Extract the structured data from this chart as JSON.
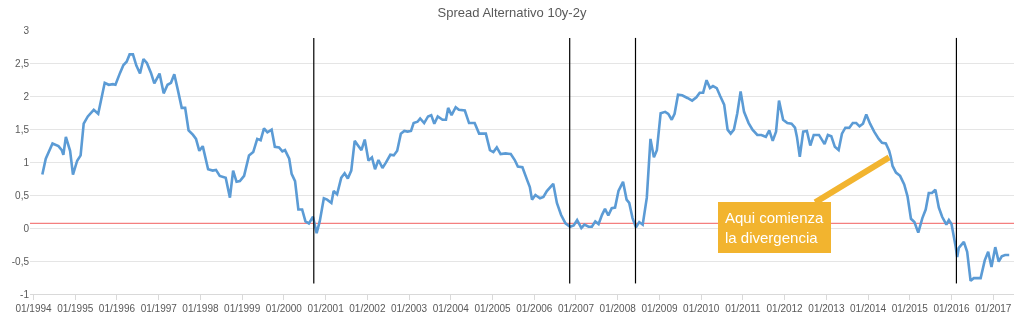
{
  "chart_data": {
    "type": "line",
    "title": "Spread Alternativo 10y-2y",
    "x": [
      "1994-03-19",
      "1994-04-18",
      "1994-06-16",
      "1994-08-07",
      "1994-09-05",
      "1994-09-19",
      "1994-10-11",
      "1994-11-17",
      "1994-12-12",
      "1995-01-18",
      "1995-02-17",
      "1995-03-16",
      "1995-04-21",
      "1995-06-12",
      "1995-07-21",
      "1995-09-16",
      "1995-10-21",
      "1995-11-27",
      "1995-12-19",
      "1996-01-28",
      "1996-02-27",
      "1996-03-26",
      "1996-04-21",
      "1996-05-20",
      "1996-06-19",
      "1996-07-21",
      "1996-08-20",
      "1996-09-19",
      "1996-10-25",
      "1996-11-23",
      "1997-01-08",
      "1997-02-13",
      "1997-03-19",
      "1997-04-18",
      "1997-05-17",
      "1997-06-16",
      "1997-07-21",
      "1997-08-20",
      "1997-09-19",
      "1997-10-28",
      "1997-11-23",
      "1997-12-22",
      "1998-01-21",
      "1998-03-09",
      "1998-04-18",
      "1998-05-17",
      "1998-06-19",
      "1998-08-10",
      "1998-09-16",
      "1998-10-14",
      "1998-11-13",
      "1998-12-12",
      "1999-01-18",
      "1999-03-02",
      "1999-04-08",
      "1999-05-13",
      "1999-06-12",
      "1999-07-11",
      "1999-08-10",
      "1999-09-16",
      "1999-10-14",
      "1999-11-20",
      "1999-12-19",
      "2000-01-11",
      "2000-02-17",
      "2000-03-09",
      "2000-04-08",
      "2000-05-07",
      "2000-06-09",
      "2000-07-08",
      "2000-08-07",
      "2000-09-12",
      "2000-10-14",
      "2000-11-10",
      "2000-12-16",
      "2001-01-14",
      "2001-02-20",
      "2001-03-12",
      "2001-04-11",
      "2001-05-17",
      "2001-06-16",
      "2001-07-14",
      "2001-08-13",
      "2001-09-12",
      "2001-10-11",
      "2001-11-10",
      "2001-12-09",
      "2002-01-11",
      "2002-02-10",
      "2002-03-09",
      "2002-04-08",
      "2002-05-13",
      "2002-06-12",
      "2002-07-21",
      "2002-08-20",
      "2002-09-19",
      "2002-10-21",
      "2002-11-20",
      "2002-12-19",
      "2003-01-18",
      "2003-02-10",
      "2003-03-16",
      "2003-04-08",
      "2003-05-13",
      "2003-06-16",
      "2003-07-14",
      "2003-08-10",
      "2003-09-09",
      "2003-10-21",
      "2003-11-20",
      "2003-12-09",
      "2004-01-08",
      "2004-02-13",
      "2004-03-12",
      "2004-05-03",
      "2004-06-09",
      "2004-07-28",
      "2004-09-05",
      "2004-11-03",
      "2004-12-09",
      "2005-01-08",
      "2005-02-07",
      "2005-03-12",
      "2005-04-25",
      "2005-06-09",
      "2005-07-14",
      "2005-08-10",
      "2005-09-19",
      "2005-11-03",
      "2005-11-23",
      "2005-12-12",
      "2006-01-11",
      "2006-02-20",
      "2006-03-22",
      "2006-04-21",
      "2006-06-16",
      "2006-07-18",
      "2006-08-23",
      "2006-10-01",
      "2006-11-10",
      "2006-12-12",
      "2007-01-11",
      "2007-02-17",
      "2007-03-16",
      "2007-04-21",
      "2007-05-20",
      "2007-06-19",
      "2007-07-18",
      "2007-08-17",
      "2007-09-12",
      "2007-10-11",
      "2007-11-10",
      "2007-12-09",
      "2008-01-08",
      "2008-02-17",
      "2008-03-19",
      "2008-04-11",
      "2008-05-10",
      "2008-06-09",
      "2008-07-08",
      "2008-08-07",
      "2008-09-12",
      "2008-10-14",
      "2008-11-13",
      "2008-12-09",
      "2009-01-11",
      "2009-02-20",
      "2009-03-19",
      "2009-04-18",
      "2009-05-13",
      "2009-06-12",
      "2009-07-18",
      "2009-09-02",
      "2009-10-14",
      "2009-11-20",
      "2009-12-19",
      "2010-01-18",
      "2010-02-17",
      "2010-03-19",
      "2010-04-14",
      "2010-05-17",
      "2010-06-16",
      "2010-07-21",
      "2010-08-20",
      "2010-09-16",
      "2010-10-14",
      "2010-11-13",
      "2010-12-12",
      "2011-01-11",
      "2011-02-20",
      "2011-03-26",
      "2011-05-07",
      "2011-06-12",
      "2011-07-21",
      "2011-08-20",
      "2011-09-19",
      "2011-10-18",
      "2011-11-13",
      "2011-12-19",
      "2012-01-25",
      "2012-03-02",
      "2012-04-01",
      "2012-04-18",
      "2012-05-13",
      "2012-06-12",
      "2012-07-14",
      "2012-08-13",
      "2012-09-12",
      "2012-10-28",
      "2012-12-16",
      "2013-01-14",
      "2013-02-13",
      "2013-03-16",
      "2013-04-18",
      "2013-05-17",
      "2013-06-16",
      "2013-07-21",
      "2013-08-20",
      "2013-09-19",
      "2013-10-18",
      "2013-11-17",
      "2013-12-16",
      "2014-01-18",
      "2014-02-23",
      "2014-04-04",
      "2014-05-03",
      "2014-06-05",
      "2014-07-04",
      "2014-07-18",
      "2014-08-03",
      "2014-09-02",
      "2014-10-08",
      "2014-11-13",
      "2014-12-12",
      "2015-01-11",
      "2015-02-10",
      "2015-03-16",
      "2015-04-21",
      "2015-05-20",
      "2015-06-16",
      "2015-07-14",
      "2015-08-13",
      "2015-09-12",
      "2015-10-11",
      "2015-11-17",
      "2015-12-09",
      "2016-01-01",
      "2016-02-07",
      "2016-02-20",
      "2016-03-05",
      "2016-04-18",
      "2016-05-17",
      "2016-06-16",
      "2016-07-14",
      "2016-09-12",
      "2016-10-18",
      "2016-11-17",
      "2016-12-16",
      "2017-01-18",
      "2017-02-17",
      "2017-03-16",
      "2017-04-14",
      "2017-05-20"
    ],
    "series": [
      {
        "color": "#5b9bd5",
        "values": [
          0.81,
          1.05,
          1.28,
          1.24,
          1.18,
          1.11,
          1.38,
          1.17,
          0.81,
          1.02,
          1.1,
          1.58,
          1.69,
          1.79,
          1.73,
          2.2,
          2.17,
          2.18,
          2.17,
          2.35,
          2.47,
          2.52,
          2.63,
          2.63,
          2.46,
          2.34,
          2.56,
          2.5,
          2.35,
          2.19,
          2.34,
          2.04,
          2.17,
          2.2,
          2.33,
          2.1,
          1.82,
          1.82,
          1.48,
          1.41,
          1.35,
          1.17,
          1.24,
          0.89,
          0.87,
          0.88,
          0.79,
          0.76,
          0.46,
          0.87,
          0.7,
          0.71,
          0.79,
          1.1,
          1.15,
          1.35,
          1.33,
          1.51,
          1.45,
          1.49,
          1.23,
          1.22,
          1.16,
          1.18,
          1.05,
          0.82,
          0.71,
          0.28,
          0.28,
          0.1,
          0.07,
          0.17,
          -0.08,
          0.1,
          0.45,
          0.43,
          0.38,
          0.56,
          0.51,
          0.76,
          0.83,
          0.75,
          0.87,
          1.32,
          1.25,
          1.18,
          1.34,
          1.02,
          1.07,
          0.89,
          1.03,
          0.91,
          0.99,
          1.11,
          1.1,
          1.17,
          1.43,
          1.47,
          1.46,
          1.47,
          1.59,
          1.61,
          1.66,
          1.59,
          1.69,
          1.71,
          1.58,
          1.69,
          1.64,
          1.64,
          1.82,
          1.71,
          1.83,
          1.79,
          1.78,
          1.59,
          1.59,
          1.43,
          1.43,
          1.18,
          1.15,
          1.22,
          1.12,
          1.13,
          1.12,
          1.03,
          0.93,
          0.92,
          0.71,
          0.62,
          0.43,
          0.5,
          0.45,
          0.47,
          0.56,
          0.67,
          0.38,
          0.2,
          0.07,
          0.02,
          0.04,
          0.12,
          0.0,
          0.05,
          0.02,
          0.02,
          0.1,
          0.06,
          0.2,
          0.29,
          0.19,
          0.3,
          0.31,
          0.56,
          0.7,
          0.43,
          0.38,
          0.15,
          0.01,
          0.09,
          0.05,
          0.46,
          1.35,
          1.07,
          1.18,
          1.74,
          1.76,
          1.73,
          1.64,
          1.73,
          2.02,
          2.01,
          1.97,
          1.93,
          1.98,
          2.05,
          2.05,
          2.24,
          2.12,
          2.15,
          2.12,
          2.0,
          1.87,
          1.49,
          1.43,
          1.49,
          1.74,
          2.07,
          1.76,
          1.59,
          1.49,
          1.41,
          1.41,
          1.38,
          1.48,
          1.32,
          1.46,
          1.93,
          1.64,
          1.59,
          1.58,
          1.52,
          1.38,
          1.08,
          1.46,
          1.47,
          1.25,
          1.41,
          1.41,
          1.27,
          1.41,
          1.39,
          1.23,
          1.18,
          1.43,
          1.52,
          1.52,
          1.59,
          1.59,
          1.54,
          1.58,
          1.72,
          1.58,
          1.46,
          1.35,
          1.29,
          1.28,
          1.17,
          1.08,
          0.94,
          0.84,
          0.79,
          0.66,
          0.48,
          0.14,
          0.09,
          -0.07,
          0.15,
          0.28,
          0.53,
          0.53,
          0.58,
          0.31,
          0.17,
          0.05,
          0.12,
          0.06,
          -0.29,
          -0.44,
          -0.3,
          -0.21,
          -0.36,
          -0.8,
          -0.76,
          -0.76,
          -0.49,
          -0.36,
          -0.59,
          -0.29,
          -0.51,
          -0.43,
          -0.41,
          -0.41
        ]
      }
    ],
    "xlim": [
      "1993-12-01",
      "2017-07-01"
    ],
    "xticks": [
      {
        "value": "1994-01-01",
        "label": "01/1994"
      },
      {
        "value": "1995-01-01",
        "label": "01/1995"
      },
      {
        "value": "1996-01-01",
        "label": "01/1996"
      },
      {
        "value": "1997-01-01",
        "label": "01/1997"
      },
      {
        "value": "1998-01-01",
        "label": "01/1998"
      },
      {
        "value": "1999-01-01",
        "label": "01/1999"
      },
      {
        "value": "2000-01-01",
        "label": "01/2000"
      },
      {
        "value": "2001-01-01",
        "label": "01/2001"
      },
      {
        "value": "2002-01-01",
        "label": "01/2002"
      },
      {
        "value": "2003-01-01",
        "label": "01/2003"
      },
      {
        "value": "2004-01-01",
        "label": "01/2004"
      },
      {
        "value": "2005-01-01",
        "label": "01/2005"
      },
      {
        "value": "2006-01-01",
        "label": "01/2006"
      },
      {
        "value": "2007-01-01",
        "label": "01/2007"
      },
      {
        "value": "2008-01-01",
        "label": "01/2008"
      },
      {
        "value": "2009-01-01",
        "label": "01/2009"
      },
      {
        "value": "2010-01-01",
        "label": "01/2010"
      },
      {
        "value": "2011-01-01",
        "label": "01/2011"
      },
      {
        "value": "2012-01-01",
        "label": "01/2012"
      },
      {
        "value": "2013-01-01",
        "label": "01/2013"
      },
      {
        "value": "2014-01-01",
        "label": "01/2014"
      },
      {
        "value": "2015-01-01",
        "label": "01/2015"
      },
      {
        "value": "2016-01-01",
        "label": "01/2016"
      },
      {
        "value": "2017-01-01",
        "label": "01/2017"
      }
    ],
    "ylim": [
      -1,
      3
    ],
    "yticks": [
      -1,
      {
        "value": -0.5,
        "label": "-0,5"
      },
      0,
      {
        "value": 0.5,
        "label": "0,5"
      },
      1,
      {
        "value": 1.5,
        "label": "1,5"
      },
      2,
      {
        "value": 2.5,
        "label": "2,5"
      },
      3
    ],
    "grid": "y",
    "marker": "none",
    "line_style": "solid",
    "ref_lines": [
      {
        "axis": "y",
        "value": 0.07,
        "color": "#f47f7f"
      },
      {
        "axis": "x",
        "value": "2000-09-19",
        "color": "#000000"
      },
      {
        "axis": "x",
        "value": "2006-11-07",
        "color": "#000000"
      },
      {
        "axis": "x",
        "value": "2008-06-05",
        "color": "#000000"
      },
      {
        "axis": "x",
        "value": "2016-02-13",
        "color": "#000000"
      }
    ],
    "annotations": [
      {
        "text": "Aqui comienza\nla divergencia",
        "x": "2014-07-04",
        "y": 1.07
      }
    ]
  }
}
